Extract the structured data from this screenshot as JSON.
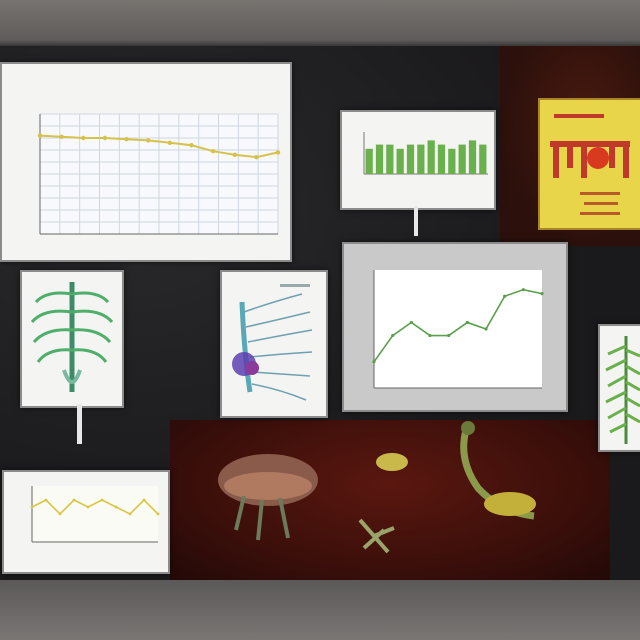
{
  "scene": {
    "board_color": "#1b1a1c",
    "floor_color": "#3c0f0a",
    "accent_green": "#6ab04c",
    "accent_yellow": "#e9d54a"
  },
  "chart_data": [
    {
      "type": "line",
      "title": "",
      "xlabel": "",
      "ylabel": "",
      "x": [
        0,
        1,
        2,
        3,
        4,
        5,
        6,
        7,
        8,
        9,
        10,
        11
      ],
      "series": [
        {
          "values": [
            8.2,
            8.1,
            8.0,
            8.0,
            7.9,
            7.8,
            7.6,
            7.4,
            6.9,
            6.6,
            6.4,
            6.8
          ]
        }
      ],
      "ylim": [
        0,
        10
      ],
      "grid": true
    },
    {
      "type": "bar",
      "title": "",
      "categories": [
        "",
        "",
        "",
        "",
        "",
        "",
        "",
        "",
        "",
        "",
        "",
        ""
      ],
      "values": [
        6,
        7,
        7,
        6,
        7,
        7,
        8,
        7,
        6,
        7,
        8,
        7
      ],
      "ylim": [
        0,
        10
      ]
    },
    {
      "type": "line",
      "title": "",
      "x": [
        0,
        1,
        2,
        3,
        4,
        5,
        6,
        7,
        8,
        9
      ],
      "series": [
        {
          "values": [
            2,
            4,
            5,
            4,
            4,
            5,
            4.5,
            7,
            7.5,
            7.2
          ]
        }
      ],
      "ylim": [
        0,
        9
      ]
    },
    {
      "type": "line",
      "title": "",
      "x": [
        0,
        1,
        2,
        3,
        4,
        5,
        6,
        7,
        8,
        9
      ],
      "series": [
        {
          "values": [
            5,
            6,
            4,
            6,
            5,
            6,
            5,
            4,
            6,
            4
          ]
        }
      ],
      "ylim": [
        0,
        8
      ]
    }
  ]
}
